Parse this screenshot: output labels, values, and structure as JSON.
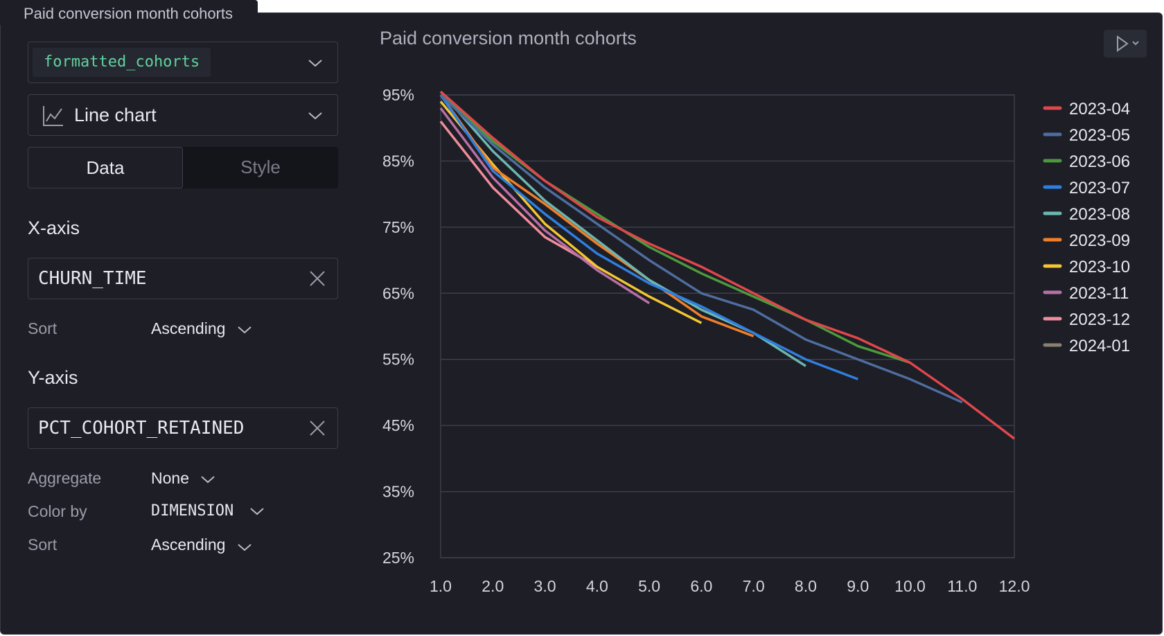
{
  "cell": {
    "tab_title": "Paid conversion month cohorts"
  },
  "config": {
    "dataframe": "formatted_cohorts",
    "chart_type": "Line chart",
    "tabs": [
      "Data",
      "Style"
    ],
    "x_axis": {
      "label": "X-axis",
      "column": "CHURN_TIME",
      "sort_label": "Sort",
      "sort_value": "Ascending"
    },
    "y_axis": {
      "label": "Y-axis",
      "column": "PCT_COHORT_RETAINED",
      "aggregate_label": "Aggregate",
      "aggregate_value": "None",
      "color_by_label": "Color by",
      "color_by_value": "DIMENSION",
      "sort_label": "Sort",
      "sort_value": "Ascending"
    }
  },
  "icons": {
    "chevron": "chevron-down-icon",
    "chart": "line-chart-icon",
    "clear": "close-icon",
    "run": "play-icon"
  },
  "chart_data": {
    "type": "line",
    "title": "Paid conversion month cohorts",
    "xlabel": "",
    "ylabel": "",
    "x_ticks": [
      "1.0",
      "2.0",
      "3.0",
      "4.0",
      "5.0",
      "6.0",
      "7.0",
      "8.0",
      "9.0",
      "10.0",
      "11.0",
      "12.0"
    ],
    "y_ticks": [
      "25%",
      "35%",
      "45%",
      "55%",
      "65%",
      "75%",
      "85%",
      "95%"
    ],
    "xlim": [
      1,
      12
    ],
    "ylim": [
      25,
      95
    ],
    "grid": true,
    "legend_position": "right",
    "series": [
      {
        "name": "2023-04",
        "color": "#e0474c",
        "values": [
          [
            1,
            95.5
          ],
          [
            2,
            88.5
          ],
          [
            3,
            82
          ],
          [
            4,
            76.5
          ],
          [
            5,
            72.5
          ],
          [
            6,
            69
          ],
          [
            7,
            65
          ],
          [
            8,
            61
          ],
          [
            9,
            58.2
          ],
          [
            10,
            54.5
          ],
          [
            11,
            49
          ],
          [
            12,
            43
          ]
        ]
      },
      {
        "name": "2023-05",
        "color": "#4e6d9f",
        "values": [
          [
            1,
            95
          ],
          [
            2,
            87.5
          ],
          [
            3,
            81
          ],
          [
            4,
            75.5
          ],
          [
            5,
            70
          ],
          [
            6,
            65
          ],
          [
            7,
            62.5
          ],
          [
            8,
            58
          ],
          [
            9,
            55
          ],
          [
            10,
            52
          ],
          [
            11,
            48.5
          ]
        ]
      },
      {
        "name": "2023-06",
        "color": "#4c9a3c",
        "values": [
          [
            1,
            95.5
          ],
          [
            2,
            88
          ],
          [
            3,
            82
          ],
          [
            4,
            77
          ],
          [
            5,
            72
          ],
          [
            6,
            68
          ],
          [
            7,
            64.5
          ],
          [
            8,
            61
          ],
          [
            9,
            57
          ],
          [
            10,
            54.5
          ]
        ]
      },
      {
        "name": "2023-07",
        "color": "#2f7fe0",
        "values": [
          [
            1,
            95
          ],
          [
            2,
            83.5
          ],
          [
            3,
            77
          ],
          [
            4,
            71
          ],
          [
            5,
            66.5
          ],
          [
            6,
            63
          ],
          [
            7,
            59
          ],
          [
            8,
            55
          ],
          [
            9,
            52
          ]
        ]
      },
      {
        "name": "2023-08",
        "color": "#6cb7b0",
        "values": [
          [
            1,
            95.5
          ],
          [
            2,
            86.5
          ],
          [
            3,
            79
          ],
          [
            4,
            73
          ],
          [
            5,
            67
          ],
          [
            6,
            62.5
          ],
          [
            7,
            59
          ],
          [
            8,
            54
          ]
        ]
      },
      {
        "name": "2023-09",
        "color": "#f07f2a",
        "values": [
          [
            1,
            95
          ],
          [
            2,
            84
          ],
          [
            3,
            78.5
          ],
          [
            4,
            72.5
          ],
          [
            5,
            67
          ],
          [
            6,
            61.5
          ],
          [
            7,
            58.5
          ]
        ]
      },
      {
        "name": "2023-10",
        "color": "#f3c632",
        "values": [
          [
            1,
            94
          ],
          [
            2,
            84.5
          ],
          [
            3,
            75.5
          ],
          [
            4,
            69
          ],
          [
            5,
            64.5
          ],
          [
            6,
            60.5
          ]
        ]
      },
      {
        "name": "2023-11",
        "color": "#b86fa5",
        "values": [
          [
            1,
            93
          ],
          [
            2,
            82.5
          ],
          [
            3,
            74.5
          ],
          [
            4,
            68.5
          ],
          [
            5,
            63.5
          ]
        ]
      },
      {
        "name": "2023-12",
        "color": "#f08c9b",
        "values": [
          [
            1,
            91
          ],
          [
            2,
            81
          ],
          [
            3,
            73.5
          ],
          [
            4,
            69
          ]
        ]
      },
      {
        "name": "2024-01",
        "color": "#8a8070",
        "values": []
      }
    ]
  }
}
